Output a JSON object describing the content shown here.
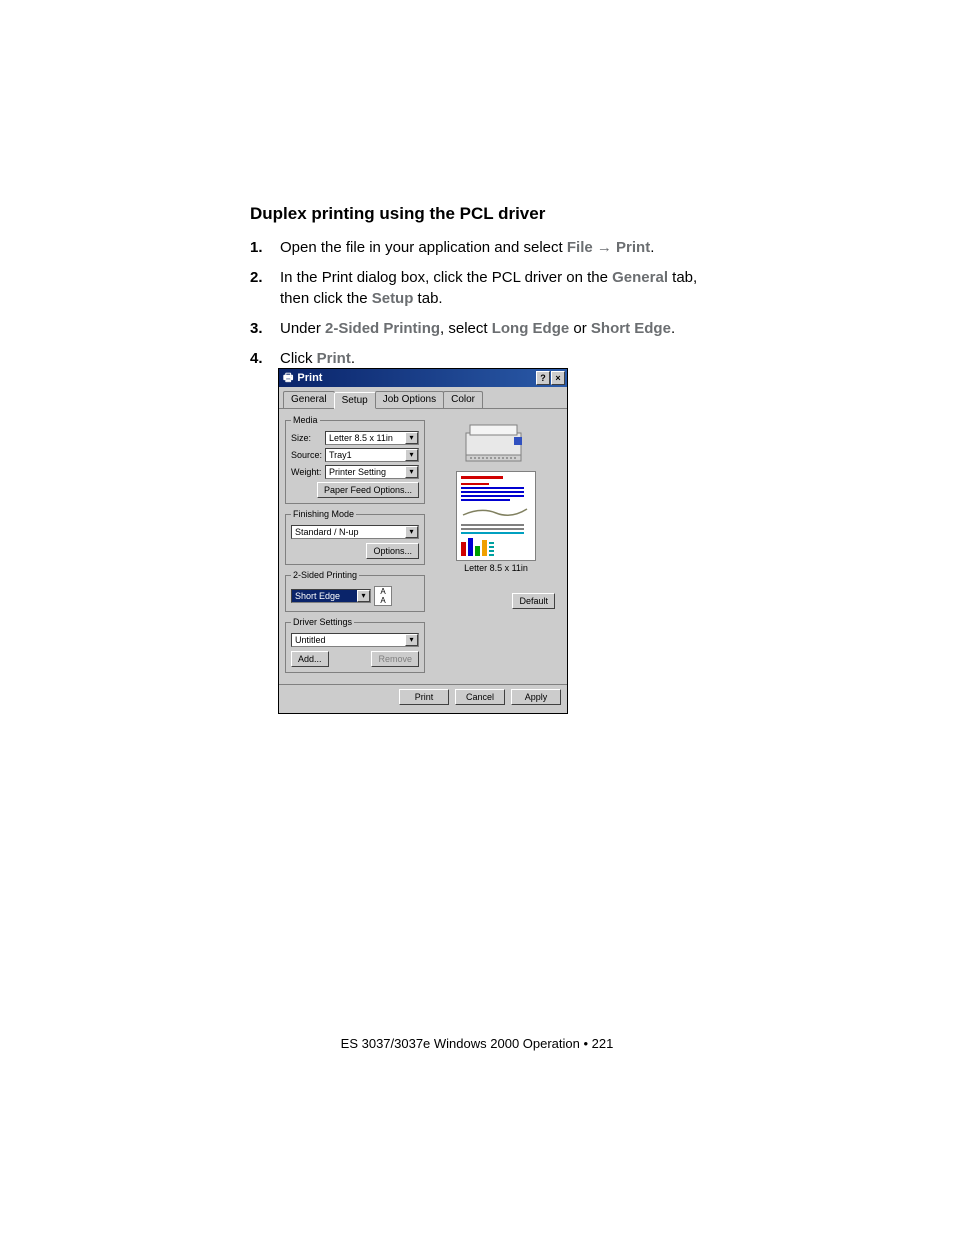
{
  "heading": "Duplex printing using the PCL driver",
  "steps": [
    {
      "num": "1.",
      "parts": [
        "Open the file in your application and select ",
        {
          "term": "File"
        },
        " ",
        {
          "arrow": "→"
        },
        " ",
        {
          "term": "Print"
        },
        "."
      ]
    },
    {
      "num": "2.",
      "parts": [
        "In the Print dialog box, click the  PCL driver on the ",
        {
          "term": "General"
        },
        " tab, then click the ",
        {
          "term": "Setup"
        },
        " tab."
      ]
    },
    {
      "num": "3.",
      "parts": [
        "Under ",
        {
          "term": "2-Sided Printing"
        },
        ", select ",
        {
          "term": "Long Edge"
        },
        " or ",
        {
          "term": "Short Edge"
        },
        "."
      ]
    },
    {
      "num": "4.",
      "parts": [
        "Click ",
        {
          "term": "Print"
        },
        "."
      ]
    }
  ],
  "dialog": {
    "title": "Print",
    "help_btn": "?",
    "close_btn": "×",
    "tabs": [
      "General",
      "Setup",
      "Job Options",
      "Color"
    ],
    "active_tab": "Setup",
    "media": {
      "legend": "Media",
      "size_label": "Size:",
      "size_value": "Letter 8.5 x 11in",
      "source_label": "Source:",
      "source_value": "Tray1",
      "weight_label": "Weight:",
      "weight_value": "Printer Setting",
      "paperfeed_btn": "Paper Feed Options..."
    },
    "finishing": {
      "legend": "Finishing Mode",
      "value": "Standard / N-up",
      "options_btn": "Options..."
    },
    "twosided": {
      "legend": "2-Sided Printing",
      "value": "Short Edge"
    },
    "driversettings": {
      "legend": "Driver Settings",
      "value": "Untitled",
      "add_btn": "Add...",
      "remove_btn": "Remove"
    },
    "preview_label": "Letter 8.5 x 11in",
    "default_btn": "Default",
    "print_btn": "Print",
    "cancel_btn": "Cancel",
    "apply_btn": "Apply"
  },
  "footer": "ES 3037/3037e Windows 2000 Operation • 221",
  "colors": {
    "titlebar_left": "#0a246a",
    "accent_red": "#d00000",
    "accent_blue": "#0000d0",
    "accent_green": "#00a000",
    "accent_orange": "#f0a000"
  }
}
